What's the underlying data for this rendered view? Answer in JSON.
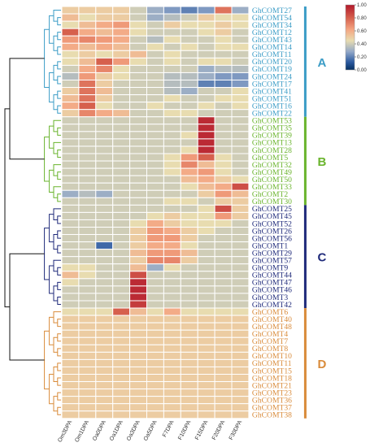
{
  "chart_data": {
    "type": "heatmap",
    "x_labels": [
      "Om3DPA",
      "Om1DPA",
      "Oa0DPA",
      "Oa1DPA",
      "Oa3DPA",
      "Oa5DPA",
      "F7DPA",
      "F10DPA",
      "F15DPA",
      "F20DPA",
      "F30DPA"
    ],
    "rows": [
      {
        "gene": "GhCOMT27",
        "group": "A",
        "values": [
          0.5,
          0.5,
          0.5,
          0.5,
          0.4,
          0.3,
          0.25,
          0.2,
          0.25,
          0.75,
          0.3
        ]
      },
      {
        "gene": "GhCOMT54",
        "group": "A",
        "values": [
          0.55,
          0.45,
          0.5,
          0.5,
          0.4,
          0.3,
          0.35,
          0.4,
          0.5,
          0.45,
          0.45
        ]
      },
      {
        "gene": "GhCOMT34",
        "group": "A",
        "values": [
          0.45,
          0.55,
          0.6,
          0.65,
          0.45,
          0.4,
          0.5,
          0.45,
          0.45,
          0.5,
          0.45
        ]
      },
      {
        "gene": "GhCOMT12",
        "group": "A",
        "values": [
          0.8,
          0.6,
          0.55,
          0.6,
          0.45,
          0.4,
          0.4,
          0.4,
          0.45,
          0.5,
          0.4
        ]
      },
      {
        "gene": "GhCOMT43",
        "group": "A",
        "values": [
          0.65,
          0.7,
          0.65,
          0.6,
          0.4,
          0.35,
          0.45,
          0.4,
          0.4,
          0.45,
          0.4
        ]
      },
      {
        "gene": "GhCOMT14",
        "group": "A",
        "values": [
          0.6,
          0.55,
          0.6,
          0.55,
          0.4,
          0.45,
          0.4,
          0.45,
          0.4,
          0.45,
          0.45
        ]
      },
      {
        "gene": "GhCOMT11",
        "group": "A",
        "values": [
          0.45,
          0.5,
          0.45,
          0.5,
          0.55,
          0.4,
          0.45,
          0.4,
          0.4,
          0.4,
          0.4
        ]
      },
      {
        "gene": "GhCOMT20",
        "group": "A",
        "values": [
          0.45,
          0.55,
          0.8,
          0.65,
          0.45,
          0.4,
          0.45,
          0.4,
          0.45,
          0.45,
          0.4
        ]
      },
      {
        "gene": "GhCOMT19",
        "group": "A",
        "values": [
          0.4,
          0.6,
          0.7,
          0.45,
          0.4,
          0.4,
          0.4,
          0.4,
          0.3,
          0.35,
          0.35
        ]
      },
      {
        "gene": "GhCOMT24",
        "group": "A",
        "values": [
          0.35,
          0.65,
          0.5,
          0.45,
          0.4,
          0.4,
          0.35,
          0.35,
          0.3,
          0.25,
          0.25
        ]
      },
      {
        "gene": "GhCOMT17",
        "group": "A",
        "values": [
          0.4,
          0.75,
          0.5,
          0.4,
          0.4,
          0.4,
          0.35,
          0.35,
          0.2,
          0.2,
          0.25
        ]
      },
      {
        "gene": "GhCOMT41",
        "group": "A",
        "values": [
          0.5,
          0.75,
          0.55,
          0.4,
          0.4,
          0.4,
          0.35,
          0.3,
          0.4,
          0.4,
          0.45
        ]
      },
      {
        "gene": "GhCOMT51",
        "group": "A",
        "values": [
          0.55,
          0.75,
          0.5,
          0.4,
          0.4,
          0.4,
          0.45,
          0.4,
          0.4,
          0.45,
          0.45
        ]
      },
      {
        "gene": "GhCOMT16",
        "group": "A",
        "values": [
          0.6,
          0.8,
          0.45,
          0.4,
          0.4,
          0.45,
          0.4,
          0.4,
          0.45,
          0.4,
          0.45
        ]
      },
      {
        "gene": "GhCOMT22",
        "group": "A",
        "values": [
          0.5,
          0.7,
          0.6,
          0.55,
          0.4,
          0.4,
          0.45,
          0.45,
          0.4,
          0.4,
          0.4
        ]
      },
      {
        "gene": "GhCOMT53",
        "group": "B",
        "values": [
          0.4,
          0.4,
          0.4,
          0.4,
          0.4,
          0.4,
          0.4,
          0.4,
          0.95,
          0.4,
          0.4
        ]
      },
      {
        "gene": "GhCOMT35",
        "group": "B",
        "values": [
          0.4,
          0.4,
          0.4,
          0.4,
          0.4,
          0.4,
          0.4,
          0.4,
          0.95,
          0.4,
          0.4
        ]
      },
      {
        "gene": "GhCOMT39",
        "group": "B",
        "values": [
          0.4,
          0.4,
          0.4,
          0.4,
          0.4,
          0.4,
          0.4,
          0.45,
          0.95,
          0.4,
          0.4
        ]
      },
      {
        "gene": "GhCOMT13",
        "group": "B",
        "values": [
          0.4,
          0.4,
          0.4,
          0.4,
          0.4,
          0.4,
          0.4,
          0.4,
          0.95,
          0.4,
          0.4
        ]
      },
      {
        "gene": "GhCOMT28",
        "group": "B",
        "values": [
          0.4,
          0.4,
          0.4,
          0.4,
          0.4,
          0.4,
          0.4,
          0.45,
          0.95,
          0.4,
          0.4
        ]
      },
      {
        "gene": "GhCOMT5",
        "group": "B",
        "values": [
          0.4,
          0.4,
          0.4,
          0.4,
          0.4,
          0.4,
          0.45,
          0.65,
          0.8,
          0.45,
          0.4
        ]
      },
      {
        "gene": "GhCOMT32",
        "group": "B",
        "values": [
          0.4,
          0.4,
          0.4,
          0.4,
          0.4,
          0.4,
          0.45,
          0.7,
          0.55,
          0.45,
          0.4
        ]
      },
      {
        "gene": "GhCOMT49",
        "group": "B",
        "values": [
          0.4,
          0.4,
          0.4,
          0.4,
          0.4,
          0.4,
          0.45,
          0.6,
          0.65,
          0.45,
          0.4
        ]
      },
      {
        "gene": "GhCOMT50",
        "group": "B",
        "values": [
          0.4,
          0.4,
          0.4,
          0.4,
          0.4,
          0.4,
          0.4,
          0.55,
          0.6,
          0.5,
          0.45
        ]
      },
      {
        "gene": "GhCOMT33",
        "group": "B",
        "values": [
          0.4,
          0.4,
          0.4,
          0.4,
          0.4,
          0.4,
          0.4,
          0.45,
          0.55,
          0.6,
          0.85
        ]
      },
      {
        "gene": "GhCOMT2",
        "group": "B",
        "values": [
          0.3,
          0.35,
          0.3,
          0.4,
          0.4,
          0.4,
          0.4,
          0.4,
          0.5,
          0.65,
          0.55
        ]
      },
      {
        "gene": "GhCOMT30",
        "group": "B",
        "values": [
          0.4,
          0.4,
          0.4,
          0.4,
          0.4,
          0.4,
          0.45,
          0.45,
          0.4,
          0.5,
          0.5
        ]
      },
      {
        "gene": "GhCOMT25",
        "group": "C",
        "values": [
          0.4,
          0.4,
          0.4,
          0.4,
          0.4,
          0.4,
          0.4,
          0.4,
          0.45,
          0.85,
          0.5
        ]
      },
      {
        "gene": "GhCOMT45",
        "group": "C",
        "values": [
          0.4,
          0.4,
          0.4,
          0.4,
          0.4,
          0.45,
          0.5,
          0.45,
          0.45,
          0.65,
          0.5
        ]
      },
      {
        "gene": "GhCOMT52",
        "group": "C",
        "values": [
          0.4,
          0.4,
          0.4,
          0.4,
          0.45,
          0.6,
          0.5,
          0.45,
          0.45,
          0.45,
          0.4
        ]
      },
      {
        "gene": "GhCOMT26",
        "group": "C",
        "values": [
          0.4,
          0.4,
          0.4,
          0.4,
          0.5,
          0.65,
          0.6,
          0.5,
          0.45,
          0.4,
          0.4
        ]
      },
      {
        "gene": "GhCOMT56",
        "group": "C",
        "values": [
          0.4,
          0.4,
          0.4,
          0.4,
          0.5,
          0.65,
          0.65,
          0.5,
          0.4,
          0.4,
          0.4
        ]
      },
      {
        "gene": "GhCOMT1",
        "group": "C",
        "values": [
          0.4,
          0.4,
          0.15,
          0.4,
          0.5,
          0.6,
          0.6,
          0.45,
          0.4,
          0.4,
          0.4
        ]
      },
      {
        "gene": "GhCOMT29",
        "group": "C",
        "values": [
          0.4,
          0.4,
          0.4,
          0.4,
          0.55,
          0.65,
          0.65,
          0.55,
          0.4,
          0.4,
          0.4
        ]
      },
      {
        "gene": "GhCOMT57",
        "group": "C",
        "values": [
          0.4,
          0.4,
          0.4,
          0.4,
          0.5,
          0.7,
          0.7,
          0.5,
          0.4,
          0.4,
          0.4
        ]
      },
      {
        "gene": "GhCOMT9",
        "group": "C",
        "values": [
          0.45,
          0.45,
          0.4,
          0.4,
          0.55,
          0.3,
          0.45,
          0.4,
          0.4,
          0.4,
          0.4
        ]
      },
      {
        "gene": "GhCOMT44",
        "group": "C",
        "values": [
          0.55,
          0.45,
          0.4,
          0.4,
          0.85,
          0.4,
          0.4,
          0.4,
          0.4,
          0.4,
          0.4
        ]
      },
      {
        "gene": "GhCOMT47",
        "group": "C",
        "values": [
          0.45,
          0.4,
          0.4,
          0.4,
          0.95,
          0.4,
          0.4,
          0.4,
          0.4,
          0.4,
          0.4
        ]
      },
      {
        "gene": "GhCOMT46",
        "group": "C",
        "values": [
          0.4,
          0.4,
          0.4,
          0.4,
          0.95,
          0.4,
          0.4,
          0.4,
          0.4,
          0.4,
          0.4
        ]
      },
      {
        "gene": "GhCOMT3",
        "group": "C",
        "values": [
          0.4,
          0.4,
          0.4,
          0.4,
          0.95,
          0.4,
          0.4,
          0.4,
          0.4,
          0.4,
          0.4
        ]
      },
      {
        "gene": "GhCOMT42",
        "group": "C",
        "values": [
          0.4,
          0.4,
          0.4,
          0.4,
          0.9,
          0.4,
          0.4,
          0.4,
          0.4,
          0.4,
          0.4
        ]
      },
      {
        "gene": "GhCOMT6",
        "group": "D",
        "values": [
          0.45,
          0.45,
          0.45,
          0.8,
          0.55,
          0.45,
          0.6,
          0.45,
          0.45,
          0.45,
          0.45
        ]
      },
      {
        "gene": "GhCOMT40",
        "group": "D",
        "values": [
          0.5,
          0.5,
          0.5,
          0.5,
          0.5,
          0.5,
          0.5,
          0.5,
          0.5,
          0.5,
          0.5
        ]
      },
      {
        "gene": "GhCOMT48",
        "group": "D",
        "values": [
          0.5,
          0.5,
          0.5,
          0.5,
          0.5,
          0.5,
          0.5,
          0.5,
          0.5,
          0.5,
          0.5
        ]
      },
      {
        "gene": "GhCOMT4",
        "group": "D",
        "values": [
          0.5,
          0.5,
          0.5,
          0.5,
          0.5,
          0.5,
          0.5,
          0.5,
          0.5,
          0.5,
          0.5
        ]
      },
      {
        "gene": "GhCOMT7",
        "group": "D",
        "values": [
          0.5,
          0.5,
          0.5,
          0.5,
          0.5,
          0.5,
          0.5,
          0.5,
          0.5,
          0.5,
          0.5
        ]
      },
      {
        "gene": "GhCOMT8",
        "group": "D",
        "values": [
          0.5,
          0.5,
          0.5,
          0.5,
          0.5,
          0.5,
          0.5,
          0.5,
          0.5,
          0.5,
          0.5
        ]
      },
      {
        "gene": "GhCOMT10",
        "group": "D",
        "values": [
          0.5,
          0.5,
          0.5,
          0.5,
          0.5,
          0.5,
          0.5,
          0.5,
          0.5,
          0.5,
          0.5
        ]
      },
      {
        "gene": "GhCOMT11",
        "group": "D",
        "values": [
          0.5,
          0.5,
          0.5,
          0.5,
          0.5,
          0.5,
          0.5,
          0.5,
          0.5,
          0.5,
          0.5
        ]
      },
      {
        "gene": "GhCOMT15",
        "group": "D",
        "values": [
          0.5,
          0.5,
          0.5,
          0.5,
          0.5,
          0.5,
          0.5,
          0.5,
          0.5,
          0.5,
          0.5
        ]
      },
      {
        "gene": "GhCOMT18",
        "group": "D",
        "values": [
          0.5,
          0.5,
          0.5,
          0.5,
          0.5,
          0.5,
          0.5,
          0.5,
          0.5,
          0.5,
          0.5
        ]
      },
      {
        "gene": "GhCOMT21",
        "group": "D",
        "values": [
          0.5,
          0.5,
          0.5,
          0.5,
          0.5,
          0.5,
          0.5,
          0.5,
          0.5,
          0.5,
          0.5
        ]
      },
      {
        "gene": "GhCOMT23",
        "group": "D",
        "values": [
          0.5,
          0.5,
          0.5,
          0.5,
          0.5,
          0.5,
          0.5,
          0.5,
          0.5,
          0.5,
          0.5
        ]
      },
      {
        "gene": "GhCOMT36",
        "group": "D",
        "values": [
          0.5,
          0.5,
          0.5,
          0.5,
          0.5,
          0.5,
          0.5,
          0.5,
          0.5,
          0.5,
          0.5
        ]
      },
      {
        "gene": "GhCOMT37",
        "group": "D",
        "values": [
          0.5,
          0.5,
          0.5,
          0.5,
          0.5,
          0.5,
          0.5,
          0.5,
          0.5,
          0.5,
          0.5
        ]
      },
      {
        "gene": "GhCOMT38",
        "group": "D",
        "values": [
          0.5,
          0.5,
          0.5,
          0.5,
          0.5,
          0.5,
          0.5,
          0.5,
          0.5,
          0.5,
          0.5
        ]
      }
    ],
    "groups": [
      {
        "label": "A",
        "color": "#3b9cc6"
      },
      {
        "label": "B",
        "color": "#6ab42d"
      },
      {
        "label": "C",
        "color": "#1f2a7a"
      },
      {
        "label": "D",
        "color": "#d98b3a"
      }
    ],
    "colorbar": {
      "ticks": [
        "1.00",
        "0.80",
        "0.60",
        "0.40",
        "0.20",
        "0.00"
      ],
      "range": [
        0,
        1
      ],
      "colors": [
        "#b2182b",
        "#d6604d",
        "#f4a582",
        "#e8dcb0",
        "#92a8c8",
        "#2c5aa0",
        "#053061"
      ],
      "placement": "top-right"
    },
    "dendrogram": true,
    "grid": true
  }
}
